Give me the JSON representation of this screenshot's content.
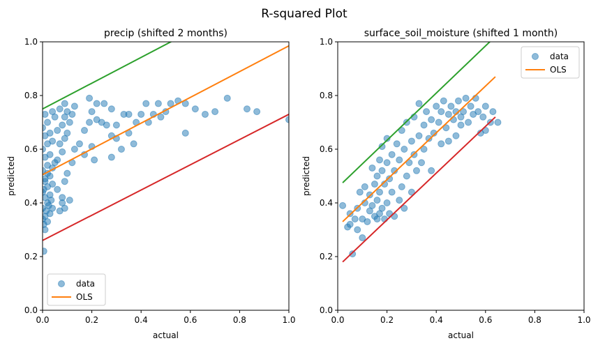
{
  "suptitle": "R-squared Plot",
  "colors": {
    "data": "#1f77b4",
    "ols": "#ff7f0e",
    "upper": "#2ca02c",
    "lower": "#d62728"
  },
  "chart_data": [
    {
      "type": "scatter",
      "title": "precip (shifted 2 months)",
      "xlabel": "actual",
      "ylabel": "predicted",
      "xlim": [
        0,
        1
      ],
      "ylim": [
        0,
        1
      ],
      "xticks": [
        "0.0",
        "0.2",
        "0.4",
        "0.6",
        "0.8",
        "1.0"
      ],
      "yticks": [
        "0.0",
        "0.2",
        "0.4",
        "0.6",
        "0.8",
        "1.0"
      ],
      "legend": {
        "placement": "lower-left",
        "entries": [
          "data",
          "OLS"
        ]
      },
      "lines": [
        {
          "role": "upper",
          "from": [
            0,
            0.75
          ],
          "to": [
            1,
            1.23
          ]
        },
        {
          "name": "OLS",
          "role": "ols",
          "from": [
            0,
            0.505
          ],
          "to": [
            1,
            0.985
          ]
        },
        {
          "role": "lower",
          "from": [
            0,
            0.26
          ],
          "to": [
            1,
            0.73
          ]
        }
      ],
      "points": [
        [
          0.005,
          0.22
        ],
        [
          0.01,
          0.3
        ],
        [
          0.005,
          0.32
        ],
        [
          0.02,
          0.33
        ],
        [
          0.01,
          0.35
        ],
        [
          0.03,
          0.36
        ],
        [
          0.0,
          0.38
        ],
        [
          0.02,
          0.4
        ],
        [
          0.01,
          0.42
        ],
        [
          0.03,
          0.43
        ],
        [
          0.005,
          0.45
        ],
        [
          0.02,
          0.46
        ],
        [
          0.04,
          0.47
        ],
        [
          0.01,
          0.48
        ],
        [
          0.03,
          0.5
        ],
        [
          0.0,
          0.52
        ],
        [
          0.02,
          0.54
        ],
        [
          0.05,
          0.55
        ],
        [
          0.01,
          0.57
        ],
        [
          0.03,
          0.58
        ],
        [
          0.0,
          0.6
        ],
        [
          0.02,
          0.62
        ],
        [
          0.04,
          0.63
        ],
        [
          0.01,
          0.65
        ],
        [
          0.03,
          0.66
        ],
        [
          0.06,
          0.67
        ],
        [
          0.0,
          0.68
        ],
        [
          0.02,
          0.7
        ],
        [
          0.05,
          0.72
        ],
        [
          0.01,
          0.73
        ],
        [
          0.04,
          0.74
        ],
        [
          0.07,
          0.75
        ],
        [
          0.0,
          0.34
        ],
        [
          0.015,
          0.37
        ],
        [
          0.025,
          0.39
        ],
        [
          0.035,
          0.41
        ],
        [
          0.0,
          0.44
        ],
        [
          0.01,
          0.49
        ],
        [
          0.02,
          0.51
        ],
        [
          0.04,
          0.53
        ],
        [
          0.06,
          0.56
        ],
        [
          0.08,
          0.59
        ],
        [
          0.07,
          0.62
        ],
        [
          0.09,
          0.64
        ],
        [
          0.1,
          0.66
        ],
        [
          0.08,
          0.69
        ],
        [
          0.11,
          0.7
        ],
        [
          0.09,
          0.72
        ],
        [
          0.12,
          0.73
        ],
        [
          0.1,
          0.74
        ],
        [
          0.13,
          0.76
        ],
        [
          0.09,
          0.77
        ],
        [
          0.06,
          0.45
        ],
        [
          0.08,
          0.4
        ],
        [
          0.09,
          0.38
        ],
        [
          0.07,
          0.37
        ],
        [
          0.11,
          0.41
        ],
        [
          0.09,
          0.48
        ],
        [
          0.1,
          0.51
        ],
        [
          0.08,
          0.42
        ],
        [
          0.04,
          0.38
        ],
        [
          0.12,
          0.55
        ],
        [
          0.13,
          0.6
        ],
        [
          0.15,
          0.62
        ],
        [
          0.17,
          0.58
        ],
        [
          0.19,
          0.7
        ],
        [
          0.2,
          0.74
        ],
        [
          0.19,
          0.79
        ],
        [
          0.22,
          0.77
        ],
        [
          0.25,
          0.77
        ],
        [
          0.28,
          0.75
        ],
        [
          0.26,
          0.69
        ],
        [
          0.28,
          0.65
        ],
        [
          0.3,
          0.69
        ],
        [
          0.33,
          0.73
        ],
        [
          0.35,
          0.73
        ],
        [
          0.38,
          0.7
        ],
        [
          0.4,
          0.73
        ],
        [
          0.42,
          0.77
        ],
        [
          0.47,
          0.77
        ],
        [
          0.5,
          0.74
        ],
        [
          0.52,
          0.77
        ],
        [
          0.55,
          0.78
        ],
        [
          0.58,
          0.77
        ],
        [
          0.62,
          0.75
        ],
        [
          0.66,
          0.73
        ],
        [
          0.7,
          0.74
        ],
        [
          0.75,
          0.79
        ],
        [
          0.83,
          0.75
        ],
        [
          0.87,
          0.74
        ],
        [
          1.0,
          0.71
        ],
        [
          0.58,
          0.66
        ],
        [
          0.37,
          0.62
        ],
        [
          0.35,
          0.66
        ],
        [
          0.3,
          0.64
        ],
        [
          0.28,
          0.57
        ],
        [
          0.21,
          0.56
        ],
        [
          0.17,
          0.67
        ],
        [
          0.22,
          0.71
        ],
        [
          0.24,
          0.7
        ],
        [
          0.32,
          0.6
        ],
        [
          0.45,
          0.73
        ],
        [
          0.48,
          0.72
        ],
        [
          0.43,
          0.7
        ],
        [
          0.2,
          0.61
        ]
      ]
    },
    {
      "type": "scatter",
      "title": "surface_soil_moisture (shifted 1 month)",
      "xlabel": "actual",
      "ylabel": "predicted",
      "xlim": [
        0,
        1
      ],
      "ylim": [
        0,
        1
      ],
      "xticks": [
        "0.0",
        "0.2",
        "0.4",
        "0.6",
        "0.8",
        "1.0"
      ],
      "yticks": [
        "0.0",
        "0.2",
        "0.4",
        "0.6",
        "0.8",
        "1.0"
      ],
      "legend": {
        "placement": "upper-right",
        "entries": [
          "data",
          "OLS"
        ]
      },
      "lines": [
        {
          "role": "upper",
          "from": [
            0.02,
            0.475
          ],
          "to": [
            0.64,
            1.02
          ]
        },
        {
          "name": "OLS",
          "role": "ols",
          "from": [
            0.02,
            0.33
          ],
          "to": [
            0.64,
            0.87
          ]
        },
        {
          "role": "lower",
          "from": [
            0.02,
            0.18
          ],
          "to": [
            0.64,
            0.72
          ]
        }
      ],
      "points": [
        [
          0.02,
          0.39
        ],
        [
          0.04,
          0.31
        ],
        [
          0.05,
          0.32
        ],
        [
          0.05,
          0.36
        ],
        [
          0.06,
          0.21
        ],
        [
          0.07,
          0.34
        ],
        [
          0.08,
          0.3
        ],
        [
          0.08,
          0.38
        ],
        [
          0.09,
          0.44
        ],
        [
          0.1,
          0.27
        ],
        [
          0.1,
          0.34
        ],
        [
          0.11,
          0.4
        ],
        [
          0.11,
          0.46
        ],
        [
          0.12,
          0.33
        ],
        [
          0.13,
          0.37
        ],
        [
          0.13,
          0.43
        ],
        [
          0.14,
          0.39
        ],
        [
          0.14,
          0.53
        ],
        [
          0.15,
          0.35
        ],
        [
          0.15,
          0.47
        ],
        [
          0.16,
          0.34
        ],
        [
          0.16,
          0.41
        ],
        [
          0.16,
          0.5
        ],
        [
          0.17,
          0.36
        ],
        [
          0.17,
          0.44
        ],
        [
          0.17,
          0.56
        ],
        [
          0.18,
          0.38
        ],
        [
          0.18,
          0.52
        ],
        [
          0.18,
          0.61
        ],
        [
          0.19,
          0.34
        ],
        [
          0.19,
          0.47
        ],
        [
          0.2,
          0.4
        ],
        [
          0.2,
          0.55
        ],
        [
          0.2,
          0.64
        ],
        [
          0.21,
          0.36
        ],
        [
          0.21,
          0.49
        ],
        [
          0.22,
          0.44
        ],
        [
          0.22,
          0.58
        ],
        [
          0.23,
          0.35
        ],
        [
          0.23,
          0.52
        ],
        [
          0.24,
          0.62
        ],
        [
          0.25,
          0.41
        ],
        [
          0.25,
          0.56
        ],
        [
          0.26,
          0.46
        ],
        [
          0.26,
          0.67
        ],
        [
          0.27,
          0.38
        ],
        [
          0.27,
          0.6
        ],
        [
          0.28,
          0.5
        ],
        [
          0.28,
          0.7
        ],
        [
          0.29,
          0.55
        ],
        [
          0.3,
          0.44
        ],
        [
          0.3,
          0.63
        ],
        [
          0.31,
          0.58
        ],
        [
          0.31,
          0.72
        ],
        [
          0.32,
          0.52
        ],
        [
          0.33,
          0.65
        ],
        [
          0.33,
          0.77
        ],
        [
          0.34,
          0.55
        ],
        [
          0.35,
          0.69
        ],
        [
          0.35,
          0.6
        ],
        [
          0.36,
          0.74
        ],
        [
          0.37,
          0.64
        ],
        [
          0.38,
          0.52
        ],
        [
          0.38,
          0.71
        ],
        [
          0.39,
          0.66
        ],
        [
          0.4,
          0.76
        ],
        [
          0.41,
          0.7
        ],
        [
          0.42,
          0.62
        ],
        [
          0.42,
          0.74
        ],
        [
          0.43,
          0.78
        ],
        [
          0.44,
          0.68
        ],
        [
          0.45,
          0.73
        ],
        [
          0.45,
          0.63
        ],
        [
          0.46,
          0.76
        ],
        [
          0.47,
          0.71
        ],
        [
          0.48,
          0.65
        ],
        [
          0.48,
          0.74
        ],
        [
          0.49,
          0.78
        ],
        [
          0.5,
          0.72
        ],
        [
          0.5,
          0.69
        ],
        [
          0.51,
          0.74
        ],
        [
          0.52,
          0.79
        ],
        [
          0.53,
          0.7
        ],
        [
          0.54,
          0.76
        ],
        [
          0.55,
          0.73
        ],
        [
          0.56,
          0.79
        ],
        [
          0.57,
          0.74
        ],
        [
          0.58,
          0.66
        ],
        [
          0.59,
          0.72
        ],
        [
          0.6,
          0.67
        ],
        [
          0.6,
          0.76
        ],
        [
          0.62,
          0.7
        ],
        [
          0.63,
          0.74
        ],
        [
          0.65,
          0.7
        ]
      ]
    }
  ]
}
